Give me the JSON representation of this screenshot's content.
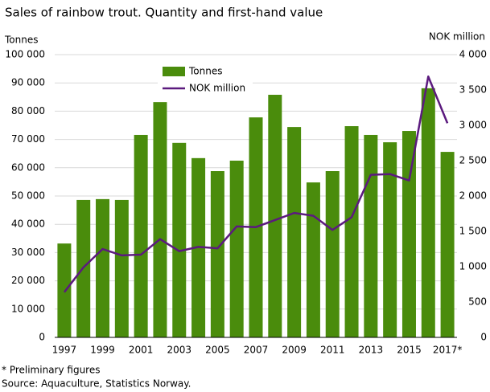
{
  "chart_data": {
    "type": "bar-line",
    "title": "Sales of rainbow trout. Quantity and first-hand value",
    "y_label": "Tonnes",
    "y2_label": "NOK million",
    "footnote": "* Preliminary figures",
    "source": "Source: Aquaculture, Statistics Norway.",
    "categories": [
      "1997",
      null,
      "1999",
      null,
      "2001",
      null,
      "2003",
      null,
      "2005",
      null,
      "2007",
      null,
      "2009",
      null,
      "2011",
      null,
      "2013",
      null,
      "2015",
      null,
      "2017*"
    ],
    "series": [
      {
        "name": "Tonnes",
        "color": "#4a8c0c",
        "type": "bar",
        "values": [
          33200,
          48600,
          48900,
          48600,
          71600,
          83200,
          68800,
          63400,
          58800,
          62500,
          77800,
          85800,
          74400,
          54800,
          58800,
          74700,
          71600,
          69000,
          73000,
          88100,
          65600
        ]
      },
      {
        "name": "NOK million",
        "color": "#5b1a7e",
        "type": "line",
        "axis": "y2",
        "values": [
          640,
          990,
          1250,
          1160,
          1170,
          1390,
          1220,
          1280,
          1260,
          1570,
          1560,
          1660,
          1760,
          1720,
          1520,
          1700,
          2300,
          2310,
          2220,
          3690,
          3030
        ]
      }
    ],
    "ylim": [
      0,
      100000
    ],
    "yticks": [
      0,
      {
        "value": 10000,
        "label": "10 000"
      },
      {
        "value": 20000,
        "label": "20 000"
      },
      {
        "value": 30000,
        "label": "30 000"
      },
      {
        "value": 40000,
        "label": "40 000"
      },
      {
        "value": 50000,
        "label": "50 000"
      },
      {
        "value": 60000,
        "label": "60 000"
      },
      {
        "value": 70000,
        "label": "70 000"
      },
      {
        "value": 80000,
        "label": "80 000"
      },
      {
        "value": 90000,
        "label": "90 000"
      },
      {
        "value": 100000,
        "label": "100 000"
      }
    ],
    "y2lim": [
      0,
      4000
    ],
    "y2ticks": [
      0,
      500,
      {
        "value": 1000,
        "label": "1 000"
      },
      {
        "value": 1500,
        "label": "1 500"
      },
      {
        "value": 2000,
        "label": "2 000"
      },
      {
        "value": 2500,
        "label": "2 500"
      },
      {
        "value": 3000,
        "label": "3 000"
      },
      {
        "value": 3500,
        "label": "3 500"
      },
      {
        "value": 4000,
        "label": "4 000"
      }
    ],
    "grid": true
  }
}
